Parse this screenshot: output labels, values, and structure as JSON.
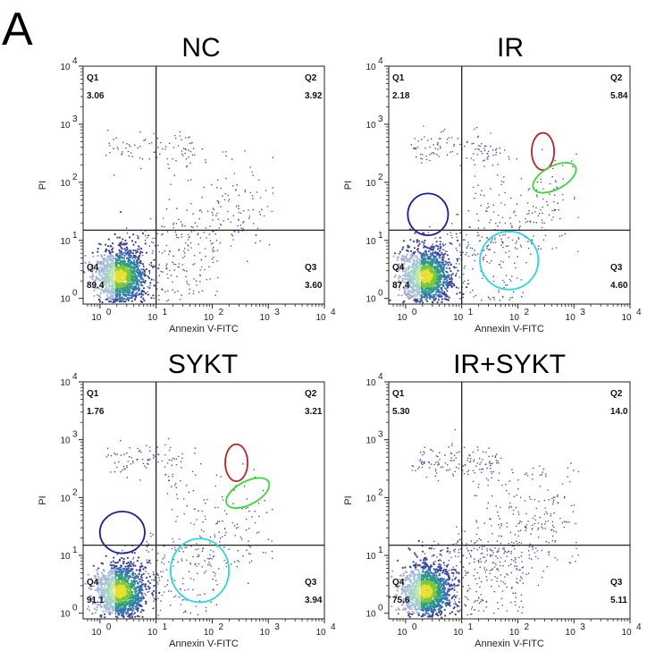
{
  "figure": {
    "panel_letter": "A"
  },
  "chart_data": [
    {
      "type": "scatter",
      "title": "NC",
      "xlabel": "Annexin V-FITC",
      "ylabel": "PI",
      "xscale": "log",
      "yscale": "log",
      "xlim": [
        0.5,
        10000
      ],
      "ylim": [
        0.8,
        10000
      ],
      "x_ticks": [
        {
          "base": "10",
          "exp": "0"
        },
        {
          "base": "10",
          "exp": "1"
        },
        {
          "base": "10",
          "exp": "2"
        },
        {
          "base": "10",
          "exp": "3"
        },
        {
          "base": "10",
          "exp": "4"
        }
      ],
      "y_ticks": [
        {
          "base": "10",
          "exp": "0"
        },
        {
          "base": "10",
          "exp": "1"
        },
        {
          "base": "10",
          "exp": "2"
        },
        {
          "base": "10",
          "exp": "3"
        },
        {
          "base": "10",
          "exp": "4"
        }
      ],
      "gate": {
        "x": 10,
        "y": 15
      },
      "quadrants": [
        {
          "name": "Q1",
          "value": "3.06"
        },
        {
          "name": "Q2",
          "value": "3.92"
        },
        {
          "name": "Q3",
          "value": "3.60"
        },
        {
          "name": "Q4",
          "value": "89.4"
        }
      ],
      "ellipses": [],
      "seed": 11,
      "spread": 1.0
    },
    {
      "type": "scatter",
      "title": "IR",
      "xlabel": "Annexin V-FITC",
      "ylabel": "PI",
      "xscale": "log",
      "yscale": "log",
      "xlim": [
        0.5,
        10000
      ],
      "ylim": [
        0.8,
        10000
      ],
      "x_ticks": [
        {
          "base": "10",
          "exp": "0"
        },
        {
          "base": "10",
          "exp": "1"
        },
        {
          "base": "10",
          "exp": "2"
        },
        {
          "base": "10",
          "exp": "3"
        },
        {
          "base": "10",
          "exp": "4"
        }
      ],
      "y_ticks": [
        {
          "base": "10",
          "exp": "0"
        },
        {
          "base": "10",
          "exp": "1"
        },
        {
          "base": "10",
          "exp": "2"
        },
        {
          "base": "10",
          "exp": "3"
        },
        {
          "base": "10",
          "exp": "4"
        }
      ],
      "gate": {
        "x": 10,
        "y": 15
      },
      "quadrants": [
        {
          "name": "Q1",
          "value": "2.18"
        },
        {
          "name": "Q2",
          "value": "5.84"
        },
        {
          "name": "Q3",
          "value": "4.60"
        },
        {
          "name": "Q4",
          "value": "87.4"
        }
      ],
      "ellipses": [
        {
          "color": "#1a1f9e",
          "cx": 2.5,
          "cy": 28,
          "rx_dec": 0.36,
          "ry_dec": 0.36
        },
        {
          "color": "#28d8e0",
          "cx": 70,
          "cy": 4.5,
          "rx_dec": 0.52,
          "ry_dec": 0.5
        },
        {
          "color": "#c0202a",
          "cx": 280,
          "cy": 340,
          "rx_dec": 0.2,
          "ry_dec": 0.32
        },
        {
          "color": "#38d838",
          "cx": 450,
          "cy": 120,
          "rx_dec": 0.42,
          "ry_dec": 0.2,
          "angle": -28
        }
      ],
      "seed": 23,
      "spread": 1.15
    },
    {
      "type": "scatter",
      "title": "SYKT",
      "xlabel": "Annexin V-FITC",
      "ylabel": "PI",
      "xscale": "log",
      "yscale": "log",
      "xlim": [
        0.5,
        10000
      ],
      "ylim": [
        0.8,
        10000
      ],
      "x_ticks": [
        {
          "base": "10",
          "exp": "0"
        },
        {
          "base": "10",
          "exp": "1"
        },
        {
          "base": "10",
          "exp": "2"
        },
        {
          "base": "10",
          "exp": "3"
        },
        {
          "base": "10",
          "exp": "4"
        }
      ],
      "y_ticks": [
        {
          "base": "10",
          "exp": "0"
        },
        {
          "base": "10",
          "exp": "1"
        },
        {
          "base": "10",
          "exp": "2"
        },
        {
          "base": "10",
          "exp": "3"
        },
        {
          "base": "10",
          "exp": "4"
        }
      ],
      "gate": {
        "x": 10,
        "y": 15
      },
      "quadrants": [
        {
          "name": "Q1",
          "value": "1.76"
        },
        {
          "name": "Q2",
          "value": "3.21"
        },
        {
          "name": "Q3",
          "value": "3.94"
        },
        {
          "name": "Q4",
          "value": "91.1"
        }
      ],
      "ellipses": [
        {
          "color": "#1a1f9e",
          "cx": 2.5,
          "cy": 25,
          "rx_dec": 0.4,
          "ry_dec": 0.36
        },
        {
          "color": "#28d8e0",
          "cx": 60,
          "cy": 5.5,
          "rx_dec": 0.52,
          "ry_dec": 0.55
        },
        {
          "color": "#c0202a",
          "cx": 270,
          "cy": 400,
          "rx_dec": 0.2,
          "ry_dec": 0.32
        },
        {
          "color": "#38d838",
          "cx": 430,
          "cy": 120,
          "rx_dec": 0.42,
          "ry_dec": 0.2,
          "angle": -28
        }
      ],
      "seed": 37,
      "spread": 1.0
    },
    {
      "type": "scatter",
      "title": "IR+SYKT",
      "xlabel": "Annexin V-FITC",
      "ylabel": "PI",
      "xscale": "log",
      "yscale": "log",
      "xlim": [
        0.5,
        10000
      ],
      "ylim": [
        0.8,
        10000
      ],
      "x_ticks": [
        {
          "base": "10",
          "exp": "0"
        },
        {
          "base": "10",
          "exp": "1"
        },
        {
          "base": "10",
          "exp": "2"
        },
        {
          "base": "10",
          "exp": "3"
        },
        {
          "base": "10",
          "exp": "4"
        }
      ],
      "y_ticks": [
        {
          "base": "10",
          "exp": "0"
        },
        {
          "base": "10",
          "exp": "1"
        },
        {
          "base": "10",
          "exp": "2"
        },
        {
          "base": "10",
          "exp": "3"
        },
        {
          "base": "10",
          "exp": "4"
        }
      ],
      "gate": {
        "x": 10,
        "y": 15
      },
      "quadrants": [
        {
          "name": "Q1",
          "value": "5.30"
        },
        {
          "name": "Q2",
          "value": "14.0"
        },
        {
          "name": "Q3",
          "value": "5.11"
        },
        {
          "name": "Q4",
          "value": "75.6"
        }
      ],
      "ellipses": [],
      "seed": 51,
      "spread": 1.6
    }
  ]
}
